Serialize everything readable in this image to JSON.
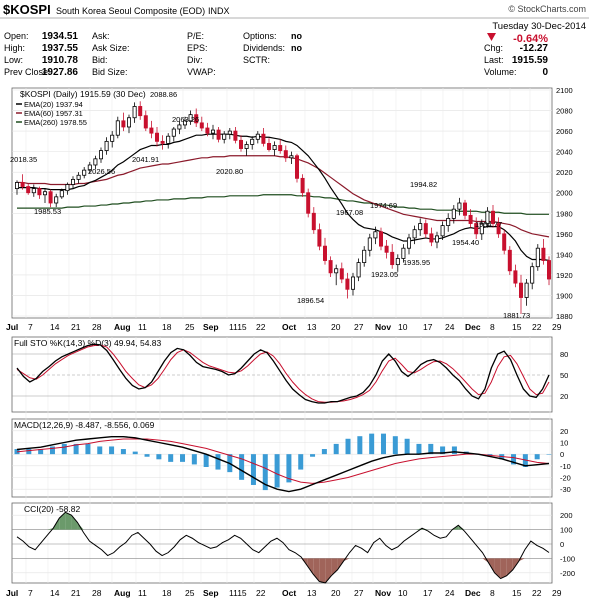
{
  "header": {
    "symbol": "$KOSPI",
    "name": "South Korea Seoul Composite (EOD)",
    "exchange": "INDX",
    "copyright": "© StockCharts.com",
    "date": "Tuesday 30-Dec-2014",
    "change_pct": "-0.64%",
    "fields_left": [
      {
        "label": "Open:",
        "value": "1934.51"
      },
      {
        "label": "High:",
        "value": "1937.55"
      },
      {
        "label": "Low:",
        "value": "1910.78"
      },
      {
        "label": "Prev Close:",
        "value": "1927.86"
      }
    ],
    "fields_mid": [
      "Ask:",
      "Ask Size:",
      "Bid:",
      "Bid Size:"
    ],
    "fields_mid2": [
      "P/E:",
      "EPS:",
      "Div:",
      "VWAP:"
    ],
    "fields_opt": [
      {
        "label": "Options:",
        "value": "no"
      },
      {
        "label": "Dividends:",
        "value": "no"
      },
      {
        "label": "SCTR:",
        "value": ""
      }
    ],
    "fields_right": [
      {
        "label": "Chg:",
        "value": "-12.27"
      },
      {
        "label": "Last:",
        "value": "1915.59"
      },
      {
        "label": "Volume:",
        "value": "0"
      }
    ]
  },
  "legend": {
    "main": "$KOSPI (Daily) 1915.59 (30 Dec)",
    "ema20": "EMA(20) 1937.94",
    "ema60": "EMA(60) 1957.31",
    "ema260": "EMA(260) 1978.55"
  },
  "colors": {
    "up": "#000000",
    "down": "#c8102e",
    "ema20": "#000000",
    "ema60": "#8b1a2b",
    "ema260": "#1f4d1f",
    "sto_k": "#000000",
    "sto_d": "#c8102e",
    "macd_hist": "#3a9bd5",
    "cci_pos": "#6b9a6b",
    "cci_neg": "#a0645a"
  },
  "chart_data": {
    "type": "candlestick",
    "price_axis": {
      "ylim": [
        1880,
        2100
      ],
      "ticks": [
        "2100",
        "2080",
        "2060",
        "2040",
        "2020",
        "2000",
        "1980",
        "1960",
        "1940",
        "1920",
        "1900",
        "1880"
      ]
    },
    "x_labels": [
      "Jul",
      "7",
      "14",
      "21",
      "28",
      "Aug",
      "11",
      "18",
      "25",
      "Sep",
      "1115",
      "22",
      "Oct",
      "13",
      "20",
      "27",
      "Nov",
      "10",
      "17",
      "24",
      "Dec",
      "8",
      "15",
      "22",
      "29"
    ],
    "annotations": [
      "2018.35",
      "1985.53",
      "2026.56",
      "2088.86",
      "2041.91",
      "2063.26",
      "2020.80",
      "1896.54",
      "1967.08",
      "1974.69",
      "1923.05",
      "1935.95",
      "1994.82",
      "1954.40",
      "1954.77",
      "1881.73"
    ],
    "candles": [
      [
        2004,
        2012,
        1998,
        2010
      ],
      [
        2010,
        2018,
        2003,
        2006
      ],
      [
        2006,
        2009,
        1998,
        2000
      ],
      [
        2000,
        2008,
        1996,
        2004
      ],
      [
        2004,
        2006,
        1994,
        1998
      ],
      [
        1998,
        2004,
        1990,
        2001
      ],
      [
        2001,
        2003,
        1986,
        1990
      ],
      [
        1990,
        1999,
        1986,
        1996
      ],
      [
        1996,
        2004,
        1994,
        2002
      ],
      [
        2002,
        2010,
        1998,
        2008
      ],
      [
        2008,
        2016,
        2004,
        2013
      ],
      [
        2013,
        2020,
        2009,
        2017
      ],
      [
        2017,
        2025,
        2014,
        2022
      ],
      [
        2022,
        2030,
        2019,
        2027
      ],
      [
        2027,
        2036,
        2023,
        2033
      ],
      [
        2033,
        2044,
        2029,
        2041
      ],
      [
        2041,
        2054,
        2037,
        2050
      ],
      [
        2050,
        2060,
        2044,
        2056
      ],
      [
        2056,
        2074,
        2053,
        2070
      ],
      [
        2070,
        2078,
        2060,
        2064
      ],
      [
        2064,
        2076,
        2058,
        2073
      ],
      [
        2073,
        2088,
        2068,
        2084
      ],
      [
        2084,
        2089,
        2071,
        2075
      ],
      [
        2075,
        2080,
        2060,
        2063
      ],
      [
        2063,
        2070,
        2053,
        2058
      ],
      [
        2058,
        2064,
        2045,
        2050
      ],
      [
        2050,
        2056,
        2042,
        2048
      ],
      [
        2048,
        2058,
        2043,
        2055
      ],
      [
        2055,
        2064,
        2050,
        2062
      ],
      [
        2062,
        2070,
        2057,
        2066
      ],
      [
        2066,
        2074,
        2062,
        2070
      ],
      [
        2070,
        2080,
        2066,
        2076
      ],
      [
        2076,
        2082,
        2064,
        2068
      ],
      [
        2068,
        2074,
        2060,
        2063
      ],
      [
        2063,
        2068,
        2055,
        2058
      ],
      [
        2058,
        2066,
        2052,
        2061
      ],
      [
        2061,
        2064,
        2049,
        2052
      ],
      [
        2052,
        2060,
        2048,
        2057
      ],
      [
        2057,
        2063,
        2052,
        2060
      ],
      [
        2060,
        2064,
        2048,
        2051
      ],
      [
        2051,
        2056,
        2040,
        2043
      ],
      [
        2043,
        2050,
        2036,
        2047
      ],
      [
        2047,
        2055,
        2042,
        2052
      ],
      [
        2052,
        2060,
        2048,
        2057
      ],
      [
        2057,
        2063,
        2045,
        2048
      ],
      [
        2048,
        2053,
        2040,
        2042
      ],
      [
        2042,
        2050,
        2036,
        2046
      ],
      [
        2046,
        2052,
        2038,
        2041
      ],
      [
        2041,
        2046,
        2030,
        2034
      ],
      [
        2034,
        2040,
        2028,
        2036
      ],
      [
        2036,
        2038,
        2010,
        2014
      ],
      [
        2014,
        2018,
        1996,
        2000
      ],
      [
        2000,
        2004,
        1976,
        1980
      ],
      [
        1980,
        1986,
        1960,
        1964
      ],
      [
        1964,
        1970,
        1944,
        1948
      ],
      [
        1948,
        1956,
        1930,
        1934
      ],
      [
        1934,
        1938,
        1918,
        1922
      ],
      [
        1922,
        1930,
        1910,
        1926
      ],
      [
        1926,
        1932,
        1912,
        1916
      ],
      [
        1916,
        1922,
        1897,
        1906
      ],
      [
        1906,
        1922,
        1900,
        1918
      ],
      [
        1918,
        1936,
        1914,
        1932
      ],
      [
        1932,
        1948,
        1928,
        1944
      ],
      [
        1944,
        1960,
        1938,
        1956
      ],
      [
        1956,
        1967,
        1950,
        1962
      ],
      [
        1962,
        1966,
        1944,
        1948
      ],
      [
        1948,
        1954,
        1936,
        1942
      ],
      [
        1942,
        1950,
        1926,
        1930
      ],
      [
        1930,
        1940,
        1923,
        1936
      ],
      [
        1936,
        1950,
        1932,
        1946
      ],
      [
        1946,
        1960,
        1940,
        1956
      ],
      [
        1956,
        1968,
        1950,
        1964
      ],
      [
        1964,
        1975,
        1958,
        1970
      ],
      [
        1970,
        1974,
        1956,
        1960
      ],
      [
        1960,
        1966,
        1948,
        1952
      ],
      [
        1952,
        1962,
        1946,
        1958
      ],
      [
        1958,
        1972,
        1954,
        1968
      ],
      [
        1968,
        1980,
        1962,
        1975
      ],
      [
        1975,
        1988,
        1970,
        1984
      ],
      [
        1984,
        1995,
        1978,
        1990
      ],
      [
        1990,
        1993,
        1974,
        1978
      ],
      [
        1978,
        1984,
        1966,
        1970
      ],
      [
        1970,
        1976,
        1955,
        1960
      ],
      [
        1960,
        1974,
        1954,
        1970
      ],
      [
        1970,
        1986,
        1966,
        1982
      ],
      [
        1982,
        1988,
        1966,
        1970
      ],
      [
        1970,
        1976,
        1956,
        1960
      ],
      [
        1960,
        1964,
        1940,
        1944
      ],
      [
        1944,
        1948,
        1920,
        1924
      ],
      [
        1924,
        1930,
        1908,
        1912
      ],
      [
        1912,
        1920,
        1882,
        1898
      ],
      [
        1898,
        1916,
        1890,
        1912
      ],
      [
        1912,
        1932,
        1906,
        1928
      ],
      [
        1928,
        1950,
        1924,
        1946
      ],
      [
        1946,
        1955,
        1930,
        1934
      ],
      [
        1934,
        1938,
        1910,
        1916
      ]
    ],
    "ema20": [
      2005,
      2005,
      2005,
      2005,
      2004,
      2004,
      2003,
      2003,
      2003,
      2003,
      2004,
      2006,
      2007,
      2010,
      2012,
      2015,
      2018,
      2022,
      2027,
      2030,
      2034,
      2038,
      2042,
      2044,
      2046,
      2046,
      2047,
      2047,
      2049,
      2050,
      2052,
      2054,
      2056,
      2056,
      2057,
      2057,
      2057,
      2057,
      2057,
      2056,
      2055,
      2055,
      2054,
      2055,
      2054,
      2054,
      2053,
      2052,
      2050,
      2049,
      2046,
      2041,
      2036,
      2029,
      2022,
      2014,
      2005,
      1997,
      1989,
      1980,
      1974,
      1969,
      1966,
      1965,
      1964,
      1962,
      1960,
      1957,
      1955,
      1953,
      1953,
      1954,
      1955,
      1956,
      1955,
      1955,
      1956,
      1958,
      1960,
      1963,
      1965,
      1966,
      1965,
      1966,
      1967,
      1967,
      1967,
      1964,
      1959,
      1953,
      1944,
      1938,
      1935,
      1935,
      1935,
      1934
    ],
    "ema60": [
      2010,
      2010,
      2009,
      2009,
      2009,
      2009,
      2008,
      2008,
      2008,
      2008,
      2008,
      2009,
      2009,
      2010,
      2011,
      2012,
      2013,
      2015,
      2017,
      2018,
      2020,
      2022,
      2024,
      2025,
      2026,
      2027,
      2028,
      2028,
      2029,
      2030,
      2031,
      2032,
      2033,
      2034,
      2034,
      2035,
      2035,
      2035,
      2036,
      2036,
      2036,
      2036,
      2036,
      2036,
      2036,
      2036,
      2036,
      2035,
      2035,
      2034,
      2033,
      2031,
      2029,
      2026,
      2023,
      2019,
      2015,
      2011,
      2007,
      2003,
      1999,
      1996,
      1993,
      1991,
      1989,
      1987,
      1985,
      1983,
      1981,
      1979,
      1978,
      1977,
      1976,
      1975,
      1974,
      1973,
      1973,
      1973,
      1973,
      1973,
      1973,
      1973,
      1972,
      1972,
      1972,
      1972,
      1971,
      1970,
      1969,
      1967,
      1964,
      1962,
      1960,
      1959,
      1958,
      1957
    ],
    "ema260": [
      1985,
      1985,
      1985,
      1985,
      1985,
      1985,
      1985,
      1985,
      1985,
      1986,
      1986,
      1986,
      1987,
      1987,
      1987,
      1988,
      1988,
      1989,
      1989,
      1990,
      1990,
      1991,
      1991,
      1992,
      1992,
      1993,
      1993,
      1993,
      1994,
      1994,
      1994,
      1995,
      1995,
      1995,
      1996,
      1996,
      1996,
      1996,
      1997,
      1997,
      1997,
      1997,
      1997,
      1997,
      1998,
      1998,
      1998,
      1998,
      1998,
      1998,
      1997,
      1997,
      1997,
      1996,
      1996,
      1995,
      1995,
      1994,
      1993,
      1992,
      1992,
      1991,
      1990,
      1990,
      1989,
      1988,
      1988,
      1987,
      1986,
      1986,
      1985,
      1985,
      1984,
      1984,
      1984,
      1983,
      1983,
      1983,
      1983,
      1982,
      1982,
      1982,
      1982,
      1981,
      1981,
      1981,
      1981,
      1980,
      1980,
      1980,
      1980,
      1979,
      1979,
      1979,
      1979,
      1979
    ],
    "sto": {
      "label": "Full STO %K(14,3) %D(3) 49.94, 54.83",
      "ylim": [
        0,
        100
      ],
      "ticks": [
        "80",
        "50",
        "20"
      ],
      "k": [
        60,
        48,
        40,
        45,
        55,
        62,
        70,
        76,
        80,
        84,
        88,
        92,
        94,
        93,
        85,
        72,
        58,
        45,
        35,
        30,
        32,
        40,
        55,
        70,
        82,
        88,
        86,
        78,
        68,
        62,
        60,
        58,
        55,
        50,
        52,
        60,
        70,
        80,
        86,
        82,
        70,
        56,
        42,
        30,
        22,
        15,
        12,
        10,
        10,
        12,
        12,
        15,
        18,
        20,
        25,
        35,
        50,
        70,
        80,
        70,
        55,
        48,
        55,
        65,
        70,
        72,
        68,
        60,
        50,
        42,
        30,
        20,
        16,
        30,
        60,
        80,
        84,
        72,
        50,
        30,
        20,
        18,
        30,
        50
      ],
      "d": [
        58,
        52,
        46,
        44,
        50,
        58,
        66,
        72,
        78,
        82,
        86,
        90,
        92,
        93,
        90,
        80,
        68,
        55,
        45,
        36,
        32,
        36,
        45,
        58,
        72,
        82,
        86,
        82,
        75,
        68,
        63,
        60,
        57,
        54,
        53,
        56,
        63,
        72,
        80,
        83,
        77,
        66,
        52,
        40,
        30,
        22,
        16,
        12,
        11,
        11,
        12,
        13,
        15,
        18,
        22,
        28,
        40,
        56,
        70,
        74,
        65,
        55,
        53,
        58,
        64,
        69,
        70,
        66,
        59,
        50,
        40,
        30,
        22,
        24,
        40,
        62,
        76,
        78,
        66,
        48,
        30,
        22,
        24,
        40
      ]
    },
    "macd": {
      "label": "MACD(12,26,9) -8.487, -8.556, 0.069",
      "ylim": [
        -35,
        25
      ],
      "ticks": [
        "20",
        "10",
        "0",
        "-10",
        "-20",
        "-30"
      ],
      "macd": [
        4,
        5,
        6,
        8,
        10,
        12,
        13,
        14,
        15,
        15,
        14,
        12,
        10,
        8,
        6,
        3,
        0,
        -4,
        -8,
        -14,
        -20,
        -26,
        -30,
        -32,
        -30,
        -26,
        -22,
        -18,
        -14,
        -10,
        -6,
        -3,
        -1,
        0,
        0,
        1,
        1,
        2,
        1,
        0,
        -2,
        -4,
        -7,
        -10,
        -9,
        -8
      ],
      "signal": [
        2,
        3,
        4,
        5,
        6,
        8,
        9,
        11,
        12,
        13,
        13,
        13,
        12,
        11,
        9,
        7,
        5,
        2,
        -1,
        -4,
        -8,
        -12,
        -17,
        -21,
        -24,
        -25,
        -24,
        -22,
        -20,
        -17,
        -14,
        -11,
        -8,
        -6,
        -4,
        -3,
        -2,
        -1,
        0,
        0,
        -1,
        -2,
        -3,
        -5,
        -7,
        -8
      ]
    },
    "cci": {
      "label": "CCI(20) -58.82",
      "ylim": [
        -250,
        250
      ],
      "ticks": [
        "200",
        "100",
        "0",
        "-100",
        "-200"
      ],
      "values": [
        50,
        20,
        -20,
        -40,
        10,
        60,
        110,
        180,
        220,
        200,
        150,
        80,
        20,
        -10,
        -40,
        -80,
        -60,
        -20,
        10,
        60,
        80,
        40,
        0,
        -50,
        -80,
        -60,
        -20,
        30,
        60,
        40,
        10,
        -10,
        -30,
        -20,
        10,
        30,
        60,
        40,
        0,
        -40,
        -60,
        -20,
        20,
        40,
        10,
        -40,
        -60,
        -90,
        -150,
        -210,
        -260,
        -270,
        -220,
        -180,
        -120,
        -60,
        -10,
        -30,
        -60,
        10,
        40,
        -10,
        -40,
        -20,
        20,
        50,
        80,
        110,
        90,
        60,
        40,
        50,
        100,
        130,
        90,
        40,
        -10,
        -60,
        -130,
        -200,
        -240,
        -220,
        -180,
        -120,
        -40,
        20,
        -10,
        -30,
        -59
      ]
    }
  }
}
